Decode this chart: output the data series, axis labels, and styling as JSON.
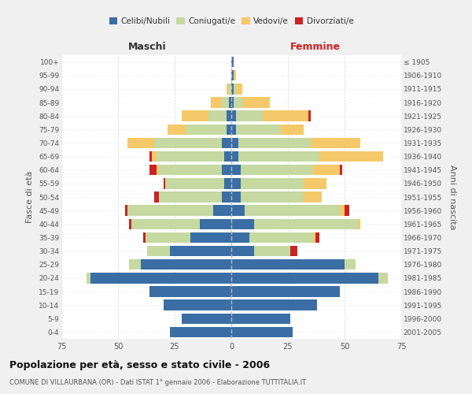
{
  "age_groups": [
    "0-4",
    "5-9",
    "10-14",
    "15-19",
    "20-24",
    "25-29",
    "30-34",
    "35-39",
    "40-44",
    "45-49",
    "50-54",
    "55-59",
    "60-64",
    "65-69",
    "70-74",
    "75-79",
    "80-84",
    "85-89",
    "90-94",
    "95-99",
    "100+"
  ],
  "birth_years": [
    "2001-2005",
    "1996-2000",
    "1991-1995",
    "1986-1990",
    "1981-1985",
    "1976-1980",
    "1971-1975",
    "1966-1970",
    "1961-1965",
    "1956-1960",
    "1951-1955",
    "1946-1950",
    "1941-1945",
    "1936-1940",
    "1931-1935",
    "1926-1930",
    "1921-1925",
    "1916-1920",
    "1911-1915",
    "1906-1910",
    "≤ 1905"
  ],
  "colors": {
    "celibi": "#3a6ea5",
    "coniugati": "#c5d9a0",
    "vedovi": "#f5c96a",
    "divorziati": "#cc2222"
  },
  "maschi": {
    "celibi": [
      27,
      22,
      30,
      36,
      62,
      40,
      27,
      18,
      14,
      8,
      4,
      3,
      4,
      3,
      4,
      2,
      2,
      1,
      0,
      0,
      0
    ],
    "coniugati": [
      0,
      0,
      0,
      0,
      2,
      5,
      10,
      20,
      30,
      38,
      28,
      26,
      28,
      30,
      30,
      18,
      8,
      3,
      1,
      0,
      0
    ],
    "vedovi": [
      0,
      0,
      0,
      0,
      0,
      0,
      0,
      0,
      0,
      0,
      0,
      0,
      1,
      2,
      12,
      8,
      12,
      5,
      1,
      0,
      0
    ],
    "divorziati": [
      0,
      0,
      0,
      0,
      0,
      0,
      0,
      1,
      1,
      1,
      2,
      1,
      3,
      1,
      0,
      0,
      0,
      0,
      0,
      0,
      0
    ]
  },
  "femmine": {
    "celibi": [
      27,
      26,
      38,
      48,
      65,
      50,
      10,
      8,
      10,
      6,
      4,
      4,
      4,
      3,
      3,
      2,
      2,
      1,
      1,
      1,
      1
    ],
    "coniugati": [
      0,
      0,
      0,
      0,
      4,
      5,
      16,
      28,
      46,
      42,
      28,
      28,
      32,
      36,
      32,
      20,
      12,
      4,
      1,
      0,
      0
    ],
    "vedovi": [
      0,
      0,
      0,
      0,
      0,
      0,
      0,
      1,
      1,
      2,
      8,
      10,
      12,
      28,
      22,
      10,
      20,
      12,
      3,
      1,
      0
    ],
    "divorziati": [
      0,
      0,
      0,
      0,
      0,
      0,
      3,
      2,
      0,
      2,
      0,
      0,
      1,
      0,
      0,
      0,
      1,
      0,
      0,
      0,
      0
    ]
  },
  "xlim": 75,
  "title": "Popolazione per età, sesso e stato civile - 2006",
  "subtitle": "COMUNE DI VILLAURBANA (OR) - Dati ISTAT 1° gennaio 2006 - Elaborazione TUTTITALIA.IT",
  "ylabel_left": "Fasce di età",
  "ylabel_right": "Anni di nascita",
  "xlabel_maschi": "Maschi",
  "xlabel_femmine": "Femmine",
  "legend_labels": [
    "Celibi/Nubili",
    "Coniugati/e",
    "Vedovi/e",
    "Divorziati/e"
  ],
  "bg_color": "#f0f0f0",
  "plot_bg": "#ffffff"
}
